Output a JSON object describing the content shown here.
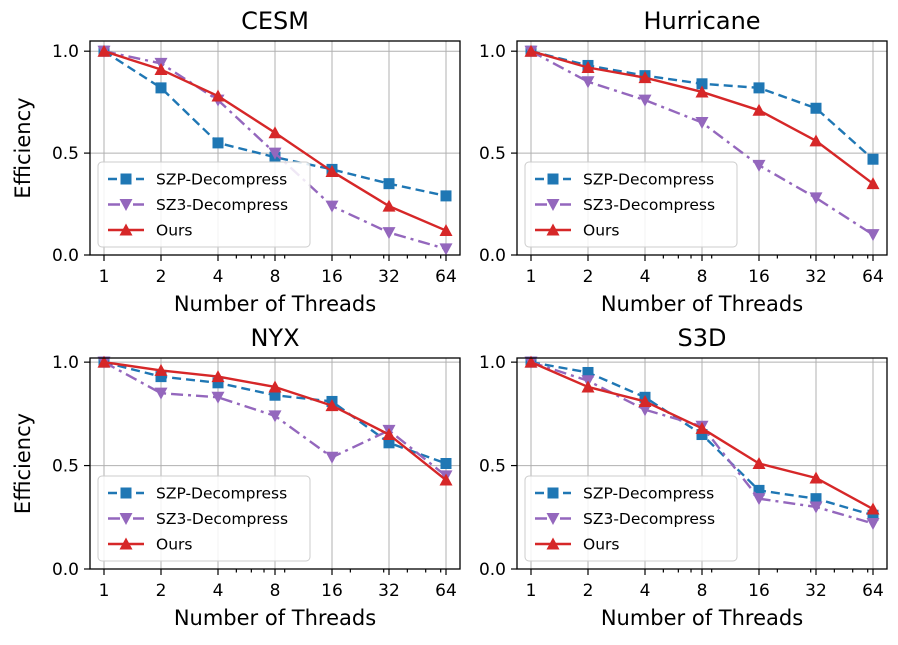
{
  "figure": {
    "legend_labels": [
      "SZP-Decompress",
      "SZ3-Decompress",
      "Ours"
    ]
  },
  "series_style": [
    {
      "name": "SZP-Decompress",
      "color": "#1f77b4",
      "marker": "square",
      "dash": "dashed"
    },
    {
      "name": "SZ3-Decompress",
      "color": "#9467bd",
      "marker": "triangle-down",
      "dash": "dashdot"
    },
    {
      "name": "Ours",
      "color": "#d62728",
      "marker": "triangle-up",
      "dash": "solid"
    }
  ],
  "chart_data": [
    {
      "type": "line",
      "title": "CESM",
      "xlabel": "Number of Threads",
      "ylabel": "Efficiency",
      "x": [
        1,
        2,
        4,
        8,
        16,
        32,
        64
      ],
      "xticklabels": [
        "1",
        "2",
        "4",
        "8",
        "16",
        "32",
        "64"
      ],
      "yticks": [
        0.0,
        0.5,
        1.0
      ],
      "yticklabels": [
        "0.0",
        "0.5",
        "1.0"
      ],
      "ylim": [
        0.0,
        1.05
      ],
      "legend": "lower-left",
      "grid": true,
      "series": [
        {
          "name": "SZP-Decompress",
          "values": [
            1.0,
            0.82,
            0.55,
            0.48,
            0.42,
            0.35,
            0.29
          ]
        },
        {
          "name": "SZ3-Decompress",
          "values": [
            1.0,
            0.94,
            0.76,
            0.5,
            0.24,
            0.11,
            0.03
          ]
        },
        {
          "name": "Ours",
          "values": [
            1.0,
            0.91,
            0.78,
            0.6,
            0.41,
            0.24,
            0.12
          ]
        }
      ]
    },
    {
      "type": "line",
      "title": "Hurricane",
      "xlabel": "Number of Threads",
      "ylabel": "",
      "x": [
        1,
        2,
        4,
        8,
        16,
        32,
        64
      ],
      "xticklabels": [
        "1",
        "2",
        "4",
        "8",
        "16",
        "32",
        "64"
      ],
      "yticks": [
        0.0,
        0.5,
        1.0
      ],
      "yticklabels": [
        "0.0",
        "0.5",
        "1.0"
      ],
      "ylim": [
        0.0,
        1.05
      ],
      "legend": "lower-left",
      "grid": true,
      "series": [
        {
          "name": "SZP-Decompress",
          "values": [
            1.0,
            0.93,
            0.88,
            0.84,
            0.82,
            0.72,
            0.47
          ]
        },
        {
          "name": "SZ3-Decompress",
          "values": [
            1.0,
            0.85,
            0.76,
            0.65,
            0.44,
            0.28,
            0.1
          ]
        },
        {
          "name": "Ours",
          "values": [
            1.0,
            0.92,
            0.87,
            0.8,
            0.71,
            0.56,
            0.35
          ]
        }
      ]
    },
    {
      "type": "line",
      "title": "NYX",
      "xlabel": "Number of Threads",
      "ylabel": "Efficiency",
      "x": [
        1,
        2,
        4,
        8,
        16,
        32,
        64
      ],
      "xticklabels": [
        "1",
        "2",
        "4",
        "8",
        "16",
        "32",
        "64"
      ],
      "yticks": [
        0.0,
        0.5,
        1.0
      ],
      "yticklabels": [
        "0.0",
        "0.5",
        "1.0"
      ],
      "ylim": [
        0.0,
        1.02
      ],
      "legend": "lower-left",
      "grid": true,
      "series": [
        {
          "name": "SZP-Decompress",
          "values": [
            1.0,
            0.93,
            0.9,
            0.84,
            0.81,
            0.61,
            0.51
          ]
        },
        {
          "name": "SZ3-Decompress",
          "values": [
            1.0,
            0.85,
            0.83,
            0.74,
            0.54,
            0.67,
            0.45
          ]
        },
        {
          "name": "Ours",
          "values": [
            1.0,
            0.96,
            0.93,
            0.88,
            0.79,
            0.65,
            0.43
          ]
        }
      ]
    },
    {
      "type": "line",
      "title": "S3D",
      "xlabel": "Number of Threads",
      "ylabel": "",
      "x": [
        1,
        2,
        4,
        8,
        16,
        32,
        64
      ],
      "xticklabels": [
        "1",
        "2",
        "4",
        "8",
        "16",
        "32",
        "64"
      ],
      "yticks": [
        0.0,
        0.5,
        1.0
      ],
      "yticklabels": [
        "0.0",
        "0.5",
        "1.0"
      ],
      "ylim": [
        0.0,
        1.02
      ],
      "legend": "lower-left",
      "grid": true,
      "series": [
        {
          "name": "SZP-Decompress",
          "values": [
            1.0,
            0.95,
            0.83,
            0.65,
            0.38,
            0.34,
            0.26
          ]
        },
        {
          "name": "SZ3-Decompress",
          "values": [
            1.0,
            0.91,
            0.77,
            0.69,
            0.34,
            0.3,
            0.22
          ]
        },
        {
          "name": "Ours",
          "values": [
            1.0,
            0.88,
            0.81,
            0.68,
            0.51,
            0.44,
            0.29
          ]
        }
      ]
    }
  ]
}
